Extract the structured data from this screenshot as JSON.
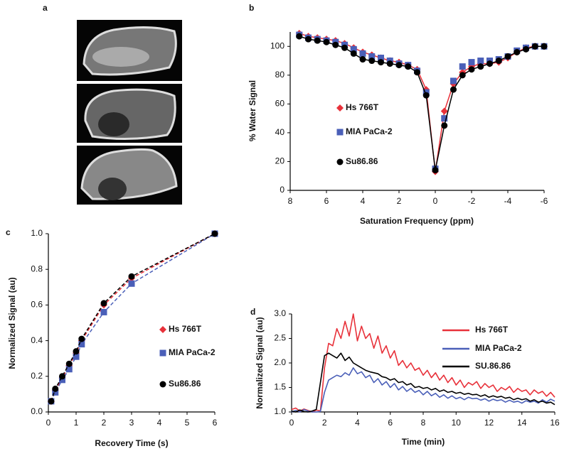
{
  "chart_data": [
    {
      "type": "image",
      "panel": "a"
    },
    {
      "type": "scatter",
      "panel": "b",
      "xlabel": "Saturation Frequency (ppm)",
      "ylabel": "% Water Signal",
      "x": [
        7.5,
        7,
        6.5,
        6,
        5.5,
        5,
        4.5,
        4,
        3.5,
        3,
        2.5,
        2,
        1.5,
        1,
        0.5,
        0,
        -0.5,
        -1,
        -1.5,
        -2,
        -2.5,
        -3,
        -3.5,
        -4,
        -4.5,
        -5,
        -5.5,
        -6
      ],
      "series": [
        {
          "name": "Hs 766T",
          "color": "#e8313a",
          "marker": "diamond",
          "linestyle": "solid",
          "values": [
            109,
            107,
            106,
            105,
            104,
            102,
            99,
            96,
            94,
            92,
            90,
            89,
            87,
            84,
            70,
            13,
            55,
            74,
            82,
            86,
            88,
            88,
            89,
            92,
            96,
            99,
            100,
            100
          ]
        },
        {
          "name": "MIA PaCa-2",
          "color": "#4a5fb8",
          "marker": "square",
          "values": [
            108,
            106,
            105,
            104,
            103,
            101,
            98,
            95,
            93,
            92,
            90,
            88,
            87,
            83,
            68,
            15,
            50,
            76,
            86,
            89,
            90,
            90,
            91,
            93,
            97,
            99,
            100,
            100
          ]
        },
        {
          "name": "Su86.86",
          "color": "#000000",
          "marker": "circle",
          "linestyle": "solid",
          "values": [
            107,
            105,
            104,
            103,
            101,
            99,
            95,
            91,
            90,
            89,
            88,
            87,
            86,
            82,
            66,
            14,
            45,
            70,
            80,
            84,
            86,
            88,
            90,
            93,
            96,
            98,
            100,
            100
          ]
        }
      ],
      "xlim": [
        8,
        -6
      ],
      "xticks": [
        8,
        6,
        4,
        2,
        0,
        -2,
        -4,
        -6
      ],
      "ylim": [
        0,
        110
      ],
      "yticks": [
        0,
        20,
        40,
        60,
        80,
        100
      ]
    },
    {
      "type": "scatter",
      "panel": "c",
      "xlabel": "Recovery Time (s)",
      "ylabel": "Normalized Signal (au)",
      "x": [
        0.1,
        0.25,
        0.5,
        0.75,
        1,
        1.2,
        2,
        3,
        6
      ],
      "series": [
        {
          "name": "Hs 766T",
          "color": "#e8313a",
          "marker": "diamond",
          "linestyle": "dashed",
          "values": [
            0.06,
            0.12,
            0.19,
            0.26,
            0.33,
            0.4,
            0.6,
            0.75,
            1.0
          ]
        },
        {
          "name": "MIA PaCa-2",
          "color": "#4a5fb8",
          "marker": "square",
          "linestyle": "dashed",
          "values": [
            0.06,
            0.11,
            0.18,
            0.24,
            0.31,
            0.38,
            0.56,
            0.72,
            1.0
          ]
        },
        {
          "name": "Su86.86",
          "color": "#000000",
          "marker": "circle",
          "linestyle": "dashed",
          "values": [
            0.06,
            0.13,
            0.2,
            0.27,
            0.34,
            0.41,
            0.61,
            0.76,
            1.0
          ]
        }
      ],
      "xlim": [
        0,
        6
      ],
      "xticks": [
        0,
        1,
        2,
        3,
        4,
        5,
        6
      ],
      "ylim": [
        0,
        1
      ],
      "yticks": [
        {
          "value": 0,
          "label": "0.0"
        },
        0.2,
        0.4,
        0.6,
        0.8,
        {
          "value": 1,
          "label": "1.0"
        }
      ]
    },
    {
      "type": "line",
      "panel": "d",
      "xlabel": "Time (min)",
      "ylabel": "Normalized Signal (au)",
      "x": [
        0,
        0.25,
        0.5,
        0.75,
        1,
        1.25,
        1.5,
        1.75,
        2,
        2.25,
        2.5,
        2.75,
        3,
        3.25,
        3.5,
        3.75,
        4,
        4.25,
        4.5,
        4.75,
        5,
        5.25,
        5.5,
        5.75,
        6,
        6.25,
        6.5,
        6.75,
        7,
        7.25,
        7.5,
        7.75,
        8,
        8.25,
        8.5,
        8.75,
        9,
        9.25,
        9.5,
        9.75,
        10,
        10.25,
        10.5,
        10.75,
        11,
        11.25,
        11.5,
        11.75,
        12,
        12.25,
        12.5,
        12.75,
        13,
        13.25,
        13.5,
        13.75,
        14,
        14.25,
        14.5,
        14.75,
        15,
        15.25,
        15.5,
        15.75,
        16
      ],
      "series": [
        {
          "name": "Hs 766T",
          "color": "#e8313a",
          "values": [
            1.05,
            1.08,
            1.02,
            1.06,
            1.03,
            1.0,
            1.04,
            1.02,
            1.9,
            2.4,
            2.35,
            2.7,
            2.5,
            2.85,
            2.55,
            3.0,
            2.45,
            2.75,
            2.5,
            2.6,
            2.3,
            2.55,
            2.2,
            2.35,
            2.1,
            2.25,
            1.95,
            2.05,
            1.9,
            2.0,
            1.85,
            1.9,
            1.75,
            1.85,
            1.7,
            1.8,
            1.65,
            1.75,
            1.6,
            1.7,
            1.55,
            1.65,
            1.5,
            1.6,
            1.55,
            1.62,
            1.48,
            1.58,
            1.5,
            1.55,
            1.42,
            1.5,
            1.45,
            1.52,
            1.4,
            1.48,
            1.42,
            1.45,
            1.35,
            1.45,
            1.38,
            1.42,
            1.32,
            1.4,
            1.3
          ]
        },
        {
          "name": "MIA PaCa-2",
          "color": "#4a5fb8",
          "values": [
            1.0,
            1.03,
            1.0,
            1.05,
            1.02,
            1.0,
            1.0,
            1.01,
            1.4,
            1.65,
            1.7,
            1.75,
            1.72,
            1.8,
            1.75,
            1.9,
            1.78,
            1.82,
            1.7,
            1.75,
            1.6,
            1.68,
            1.55,
            1.62,
            1.5,
            1.58,
            1.45,
            1.52,
            1.42,
            1.48,
            1.4,
            1.44,
            1.35,
            1.42,
            1.33,
            1.38,
            1.3,
            1.35,
            1.28,
            1.33,
            1.27,
            1.3,
            1.25,
            1.3,
            1.27,
            1.28,
            1.24,
            1.27,
            1.22,
            1.26,
            1.23,
            1.25,
            1.2,
            1.24,
            1.2,
            1.22,
            1.18,
            1.23,
            1.2,
            1.22,
            1.18,
            1.25,
            1.2,
            1.26,
            1.22
          ]
        },
        {
          "name": "SU.86.86",
          "color": "#000000",
          "values": [
            1.02,
            1.0,
            1.04,
            1.01,
            1.0,
            1.02,
            1.05,
            1.6,
            2.15,
            2.2,
            2.15,
            2.1,
            2.2,
            2.05,
            2.12,
            2.0,
            1.95,
            1.9,
            1.85,
            1.82,
            1.8,
            1.78,
            1.72,
            1.7,
            1.65,
            1.68,
            1.6,
            1.62,
            1.55,
            1.58,
            1.5,
            1.52,
            1.48,
            1.5,
            1.45,
            1.48,
            1.42,
            1.45,
            1.4,
            1.42,
            1.38,
            1.4,
            1.36,
            1.38,
            1.35,
            1.36,
            1.32,
            1.35,
            1.3,
            1.33,
            1.3,
            1.32,
            1.28,
            1.3,
            1.25,
            1.28,
            1.25,
            1.27,
            1.22,
            1.25,
            1.2,
            1.22,
            1.18,
            1.2,
            1.15
          ]
        }
      ],
      "xlim": [
        0,
        16
      ],
      "xticks": [
        0,
        2,
        4,
        6,
        8,
        10,
        12,
        14,
        16
      ],
      "ylim": [
        1,
        3
      ],
      "yticks": [
        {
          "value": 1,
          "label": "1.0"
        },
        1.5,
        {
          "value": 2,
          "label": "2.0"
        },
        2.5,
        {
          "value": 3,
          "label": "3.0"
        }
      ]
    }
  ]
}
